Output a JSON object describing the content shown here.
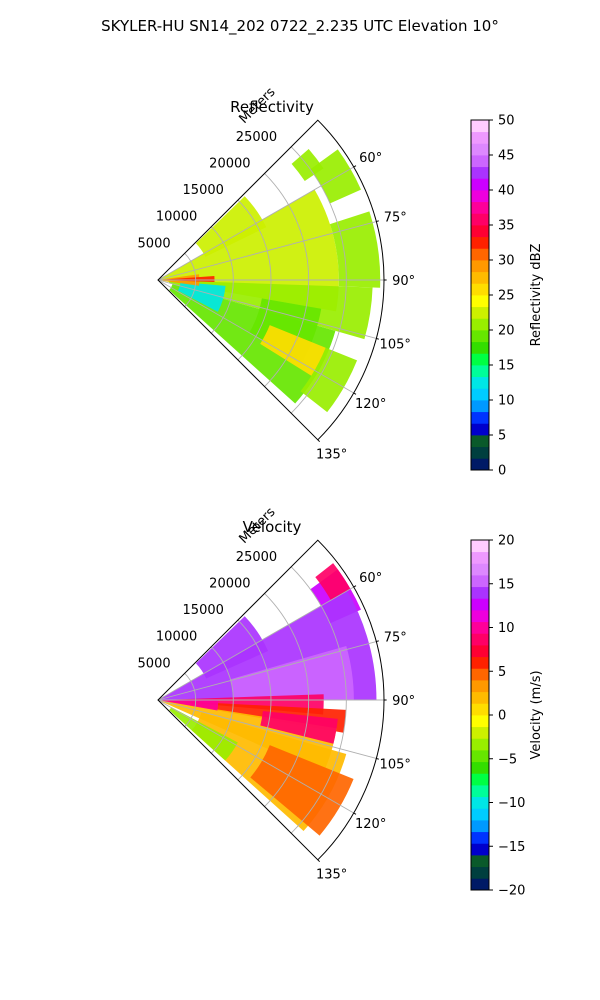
{
  "figure": {
    "suptitle": "SKYLER-HU  SN14_202  0722_2.235 UTC Elevation 10°"
  },
  "chart_data": [
    {
      "type": "heatmap",
      "projection": "polar-sector",
      "title": "Reflectivity",
      "radial_label": "Meters",
      "radial_ticks": [
        5000,
        10000,
        15000,
        20000,
        25000
      ],
      "radial_tick_labels": [
        "5000",
        "10000",
        "15000",
        "20000",
        "25000"
      ],
      "r_range": [
        0,
        30000
      ],
      "azimuth_range_deg": [
        45,
        135
      ],
      "azimuth_ticks": [
        60,
        75,
        90,
        105,
        120,
        135
      ],
      "azimuth_tick_labels": [
        "60°",
        "75°",
        "90°",
        "105°",
        "120°",
        "135°"
      ],
      "grid": true,
      "colorbar": {
        "label": "Reflectivity dBZ",
        "vmin": 0,
        "vmax": 50,
        "ticks": [
          0,
          5,
          10,
          15,
          20,
          25,
          30,
          35,
          40,
          45,
          50
        ],
        "tick_labels": [
          "0",
          "5",
          "10",
          "15",
          "20",
          "25",
          "30",
          "35",
          "40",
          "45",
          "50"
        ],
        "colors": [
          "#001a66",
          "#003f3f",
          "#0a5a2a",
          "#0000cc",
          "#0033ff",
          "#0099ff",
          "#00ccff",
          "#00e6e6",
          "#00ff99",
          "#00ff44",
          "#33dd00",
          "#66e600",
          "#99ee00",
          "#ccf000",
          "#ffff00",
          "#ffdd00",
          "#ffbb00",
          "#ff9900",
          "#ff6600",
          "#ff2200",
          "#ff0033",
          "#ff0066",
          "#ff0099",
          "#ee00dd",
          "#cc00ff",
          "#aa33ff",
          "#cc66ff",
          "#dd88ff",
          "#ee99ff",
          "#ffccff"
        ]
      },
      "regions": [
        {
          "az": [
            46,
            64
          ],
          "r": [
            7000,
            16000
          ],
          "value": 22
        },
        {
          "az": [
            54,
            66
          ],
          "r": [
            25000,
            29500
          ],
          "value": 21
        },
        {
          "az": [
            49,
            56
          ],
          "r": [
            23500,
            26500
          ],
          "value": 20
        },
        {
          "az": [
            60,
            100
          ],
          "r": [
            200,
            24000
          ],
          "value": 22
        },
        {
          "az": [
            72,
            92
          ],
          "r": [
            24000,
            29500
          ],
          "value": 21
        },
        {
          "az": [
            92,
            106
          ],
          "r": [
            1500,
            28500
          ],
          "value": 21
        },
        {
          "az": [
            106,
            132
          ],
          "r": [
            2000,
            24500
          ],
          "value": 19
        },
        {
          "az": [
            112,
            128
          ],
          "r": [
            24000,
            28500
          ],
          "value": 21
        },
        {
          "az": [
            95,
            118
          ],
          "r": [
            3000,
            9000
          ],
          "value": 13
        },
        {
          "az": [
            100,
            120
          ],
          "r": [
            14000,
            22000
          ],
          "value": 19
        },
        {
          "az": [
            82,
            98
          ],
          "r": [
            300,
            5500
          ],
          "value": 29
        },
        {
          "az": [
            86,
            92
          ],
          "r": [
            0,
            7500
          ],
          "value": 33
        },
        {
          "az": [
            112,
            122
          ],
          "r": [
            16000,
            24000
          ],
          "value": 26
        }
      ]
    },
    {
      "type": "heatmap",
      "projection": "polar-sector",
      "title": "Velocity",
      "radial_label": "Meters",
      "radial_ticks": [
        5000,
        10000,
        15000,
        20000,
        25000
      ],
      "radial_tick_labels": [
        "5000",
        "10000",
        "15000",
        "20000",
        "25000"
      ],
      "r_range": [
        0,
        30000
      ],
      "azimuth_range_deg": [
        45,
        135
      ],
      "azimuth_ticks": [
        60,
        75,
        90,
        105,
        120,
        135
      ],
      "azimuth_tick_labels": [
        "60°",
        "75°",
        "90°",
        "105°",
        "120°",
        "135°"
      ],
      "grid": true,
      "colorbar": {
        "label": "Velocity (m/s)",
        "vmin": -20,
        "vmax": 20,
        "ticks": [
          -20,
          -15,
          -10,
          -5,
          0,
          5,
          10,
          15,
          20
        ],
        "tick_labels": [
          "−20",
          "−15",
          "−10",
          "−5",
          "0",
          "5",
          "10",
          "15",
          "20"
        ],
        "colors": [
          "#001a66",
          "#003f3f",
          "#0a5a2a",
          "#0000cc",
          "#0033ff",
          "#0099ff",
          "#00ccff",
          "#00e6e6",
          "#00ff99",
          "#00ff44",
          "#33dd00",
          "#66e600",
          "#99ee00",
          "#ccf000",
          "#ffff00",
          "#ffdd00",
          "#ffbb00",
          "#ff9900",
          "#ff6600",
          "#ff2200",
          "#ff0033",
          "#ff0066",
          "#ff0099",
          "#ee00dd",
          "#cc00ff",
          "#aa33ff",
          "#cc66ff",
          "#dd88ff",
          "#ee99ff",
          "#ffccff"
        ]
      },
      "regions": [
        {
          "az": [
            46,
            66
          ],
          "r": [
            7000,
            16000
          ],
          "value": 14
        },
        {
          "az": [
            54,
            66
          ],
          "r": [
            25000,
            29500
          ],
          "value": 12
        },
        {
          "az": [
            52,
            60
          ],
          "r": [
            26500,
            29500
          ],
          "value": 9
        },
        {
          "az": [
            60,
            90
          ],
          "r": [
            200,
            29000
          ],
          "value": 14
        },
        {
          "az": [
            74,
            90
          ],
          "r": [
            10000,
            26000
          ],
          "value": 15
        },
        {
          "az": [
            88,
            95
          ],
          "r": [
            200,
            22000
          ],
          "value": 9
        },
        {
          "az": [
            93,
            100
          ],
          "r": [
            200,
            25000
          ],
          "value": 6
        },
        {
          "az": [
            99,
            114
          ],
          "r": [
            200,
            24000
          ],
          "value": 2
        },
        {
          "az": [
            106,
            132
          ],
          "r": [
            6000,
            26000
          ],
          "value": 2
        },
        {
          "az": [
            112,
            130
          ],
          "r": [
            16000,
            28000
          ],
          "value": 4
        },
        {
          "az": [
            118,
            132
          ],
          "r": [
            2000,
            12000
          ],
          "value": -3
        },
        {
          "az": [
            96,
            104
          ],
          "r": [
            14000,
            24000
          ],
          "value": 8
        },
        {
          "az": [
            90,
            100
          ],
          "r": [
            200,
            8000
          ],
          "value": 10
        }
      ]
    }
  ]
}
